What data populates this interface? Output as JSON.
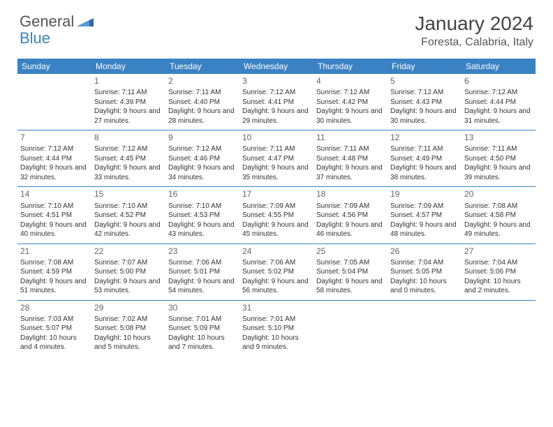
{
  "brand": {
    "part1": "General",
    "part2": "Blue"
  },
  "title": "January 2024",
  "location": "Foresta, Calabria, Italy",
  "header_bg": "#3b82c4",
  "weekdays": [
    "Sunday",
    "Monday",
    "Tuesday",
    "Wednesday",
    "Thursday",
    "Friday",
    "Saturday"
  ],
  "weeks": [
    [
      null,
      {
        "n": "1",
        "sr": "Sunrise: 7:11 AM",
        "ss": "Sunset: 4:39 PM",
        "dl": "Daylight: 9 hours and 27 minutes."
      },
      {
        "n": "2",
        "sr": "Sunrise: 7:11 AM",
        "ss": "Sunset: 4:40 PM",
        "dl": "Daylight: 9 hours and 28 minutes."
      },
      {
        "n": "3",
        "sr": "Sunrise: 7:12 AM",
        "ss": "Sunset: 4:41 PM",
        "dl": "Daylight: 9 hours and 29 minutes."
      },
      {
        "n": "4",
        "sr": "Sunrise: 7:12 AM",
        "ss": "Sunset: 4:42 PM",
        "dl": "Daylight: 9 hours and 30 minutes."
      },
      {
        "n": "5",
        "sr": "Sunrise: 7:12 AM",
        "ss": "Sunset: 4:43 PM",
        "dl": "Daylight: 9 hours and 30 minutes."
      },
      {
        "n": "6",
        "sr": "Sunrise: 7:12 AM",
        "ss": "Sunset: 4:44 PM",
        "dl": "Daylight: 9 hours and 31 minutes."
      }
    ],
    [
      {
        "n": "7",
        "sr": "Sunrise: 7:12 AM",
        "ss": "Sunset: 4:44 PM",
        "dl": "Daylight: 9 hours and 32 minutes."
      },
      {
        "n": "8",
        "sr": "Sunrise: 7:12 AM",
        "ss": "Sunset: 4:45 PM",
        "dl": "Daylight: 9 hours and 33 minutes."
      },
      {
        "n": "9",
        "sr": "Sunrise: 7:12 AM",
        "ss": "Sunset: 4:46 PM",
        "dl": "Daylight: 9 hours and 34 minutes."
      },
      {
        "n": "10",
        "sr": "Sunrise: 7:11 AM",
        "ss": "Sunset: 4:47 PM",
        "dl": "Daylight: 9 hours and 35 minutes."
      },
      {
        "n": "11",
        "sr": "Sunrise: 7:11 AM",
        "ss": "Sunset: 4:48 PM",
        "dl": "Daylight: 9 hours and 37 minutes."
      },
      {
        "n": "12",
        "sr": "Sunrise: 7:11 AM",
        "ss": "Sunset: 4:49 PM",
        "dl": "Daylight: 9 hours and 38 minutes."
      },
      {
        "n": "13",
        "sr": "Sunrise: 7:11 AM",
        "ss": "Sunset: 4:50 PM",
        "dl": "Daylight: 9 hours and 39 minutes."
      }
    ],
    [
      {
        "n": "14",
        "sr": "Sunrise: 7:10 AM",
        "ss": "Sunset: 4:51 PM",
        "dl": "Daylight: 9 hours and 40 minutes."
      },
      {
        "n": "15",
        "sr": "Sunrise: 7:10 AM",
        "ss": "Sunset: 4:52 PM",
        "dl": "Daylight: 9 hours and 42 minutes."
      },
      {
        "n": "16",
        "sr": "Sunrise: 7:10 AM",
        "ss": "Sunset: 4:53 PM",
        "dl": "Daylight: 9 hours and 43 minutes."
      },
      {
        "n": "17",
        "sr": "Sunrise: 7:09 AM",
        "ss": "Sunset: 4:55 PM",
        "dl": "Daylight: 9 hours and 45 minutes."
      },
      {
        "n": "18",
        "sr": "Sunrise: 7:09 AM",
        "ss": "Sunset: 4:56 PM",
        "dl": "Daylight: 9 hours and 46 minutes."
      },
      {
        "n": "19",
        "sr": "Sunrise: 7:09 AM",
        "ss": "Sunset: 4:57 PM",
        "dl": "Daylight: 9 hours and 48 minutes."
      },
      {
        "n": "20",
        "sr": "Sunrise: 7:08 AM",
        "ss": "Sunset: 4:58 PM",
        "dl": "Daylight: 9 hours and 49 minutes."
      }
    ],
    [
      {
        "n": "21",
        "sr": "Sunrise: 7:08 AM",
        "ss": "Sunset: 4:59 PM",
        "dl": "Daylight: 9 hours and 51 minutes."
      },
      {
        "n": "22",
        "sr": "Sunrise: 7:07 AM",
        "ss": "Sunset: 5:00 PM",
        "dl": "Daylight: 9 hours and 53 minutes."
      },
      {
        "n": "23",
        "sr": "Sunrise: 7:06 AM",
        "ss": "Sunset: 5:01 PM",
        "dl": "Daylight: 9 hours and 54 minutes."
      },
      {
        "n": "24",
        "sr": "Sunrise: 7:06 AM",
        "ss": "Sunset: 5:02 PM",
        "dl": "Daylight: 9 hours and 56 minutes."
      },
      {
        "n": "25",
        "sr": "Sunrise: 7:05 AM",
        "ss": "Sunset: 5:04 PM",
        "dl": "Daylight: 9 hours and 58 minutes."
      },
      {
        "n": "26",
        "sr": "Sunrise: 7:04 AM",
        "ss": "Sunset: 5:05 PM",
        "dl": "Daylight: 10 hours and 0 minutes."
      },
      {
        "n": "27",
        "sr": "Sunrise: 7:04 AM",
        "ss": "Sunset: 5:06 PM",
        "dl": "Daylight: 10 hours and 2 minutes."
      }
    ],
    [
      {
        "n": "28",
        "sr": "Sunrise: 7:03 AM",
        "ss": "Sunset: 5:07 PM",
        "dl": "Daylight: 10 hours and 4 minutes."
      },
      {
        "n": "29",
        "sr": "Sunrise: 7:02 AM",
        "ss": "Sunset: 5:08 PM",
        "dl": "Daylight: 10 hours and 5 minutes."
      },
      {
        "n": "30",
        "sr": "Sunrise: 7:01 AM",
        "ss": "Sunset: 5:09 PM",
        "dl": "Daylight: 10 hours and 7 minutes."
      },
      {
        "n": "31",
        "sr": "Sunrise: 7:01 AM",
        "ss": "Sunset: 5:10 PM",
        "dl": "Daylight: 10 hours and 9 minutes."
      },
      null,
      null,
      null
    ]
  ]
}
